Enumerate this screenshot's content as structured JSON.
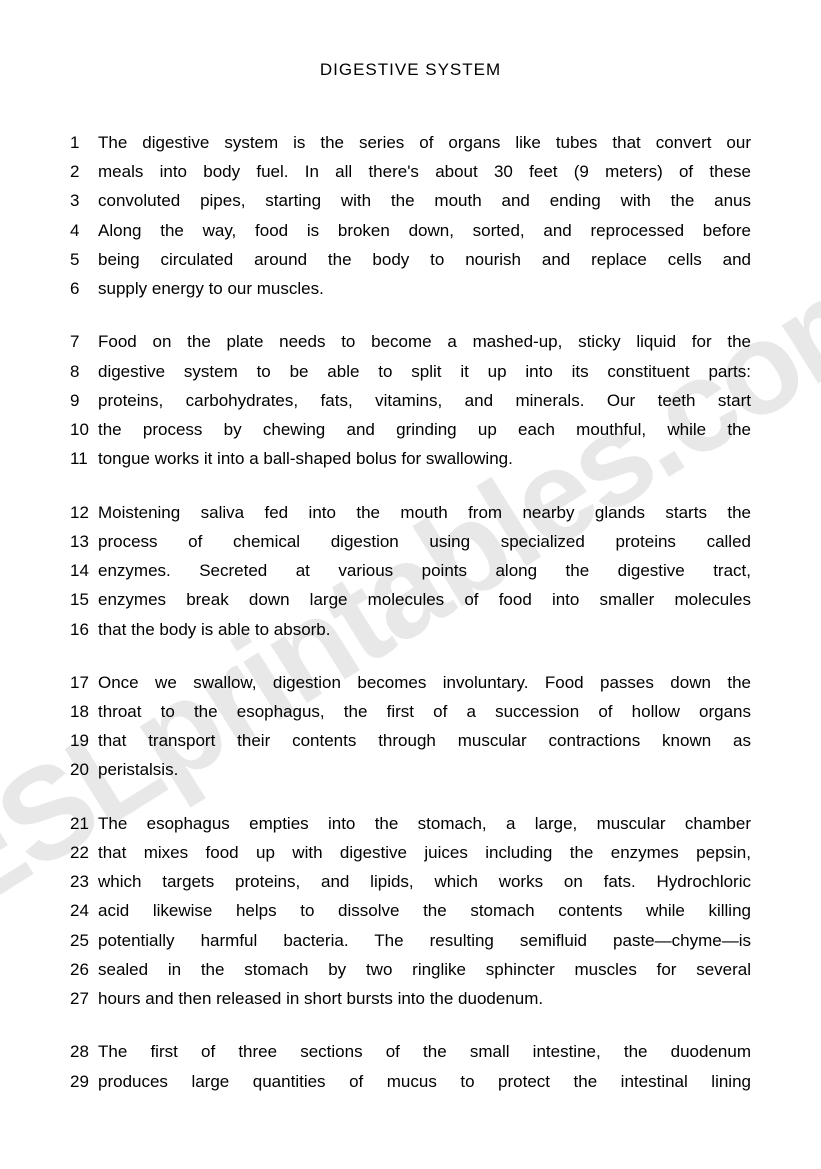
{
  "title": "DIGESTIVE SYSTEM",
  "watermark": "ESLprintables.com",
  "paragraphs": [
    {
      "lines": [
        {
          "num": "1",
          "text": "The digestive system is the series of organs like tubes that convert our",
          "last": false
        },
        {
          "num": "2",
          "text": "meals into body fuel. In all there's  about  30 feet  (9 meters) of these",
          "last": false
        },
        {
          "num": "3",
          "text": "convoluted  pipes,  starting  with the  mouth and  ending  with  the  anus",
          "last": false
        },
        {
          "num": "4",
          "text": "Along the  way, food is  broken down, sorted,  and  reprocessed  before",
          "last": false
        },
        {
          "num": "5",
          "text": "being  circulated  around  the  body  to  nourish  and  replace  cells  and",
          "last": false
        },
        {
          "num": "6",
          "text": "supply energy to our muscles.",
          "last": true
        }
      ]
    },
    {
      "lines": [
        {
          "num": "7",
          "text": "Food on the plate needs to  become a mashed-up,  sticky liquid  for  the",
          "last": false
        },
        {
          "num": "8",
          "text": "digestive  system to  be  able  to  split  it  up into its constituent parts:",
          "last": false
        },
        {
          "num": "9",
          "text": "proteins, carbohydrates, fats,  vitamins,  and  minerals. Our teeth start",
          "last": false
        },
        {
          "num": "10",
          "text": "the  process  by  chewing  and  grinding  up  each  mouthful,  while  the",
          "last": false
        },
        {
          "num": "11",
          "text": "tongue works it into a ball-shaped bolus for swallowing.",
          "last": true
        }
      ]
    },
    {
      "lines": [
        {
          "num": "12",
          "text": "Moistening  saliva  fed  into  the  mouth from nearby glands starts the",
          "last": false
        },
        {
          "num": "13",
          "text": "process  of   chemical   digestion   using   specialized   proteins   called",
          "last": false
        },
        {
          "num": "14",
          "text": "enzymes.   Secreted  at  various   points  along  the   digestive  tract,",
          "last": false
        },
        {
          "num": "15",
          "text": "enzymes  break  down  large  molecules  of  food into smaller molecules",
          "last": false
        },
        {
          "num": "16",
          "text": "that the body is able to absorb.",
          "last": true
        }
      ]
    },
    {
      "lines": [
        {
          "num": "17",
          "text": "Once we swallow, digestion becomes involuntary. Food passes down the",
          "last": false
        },
        {
          "num": "18",
          "text": "throat  to the  esophagus,  the first  of a  succession  of hollow organs",
          "last": false
        },
        {
          "num": "19",
          "text": "that transport their contents through muscular contractions known as",
          "last": false
        },
        {
          "num": "20",
          "text": "peristalsis.",
          "last": true
        }
      ]
    },
    {
      "lines": [
        {
          "num": "21",
          "text": "The  esophagus  empties  into the  stomach, a large, muscular chamber",
          "last": false
        },
        {
          "num": "22",
          "text": "that mixes food up with digestive juices including the enzymes pepsin,",
          "last": false
        },
        {
          "num": "23",
          "text": "which targets proteins, and lipids,  which works on fats.  Hydrochloric",
          "last": false
        },
        {
          "num": "24",
          "text": "acid  likewise  helps  to  dissolve  the  stomach  contents  while  killing",
          "last": false
        },
        {
          "num": "25",
          "text": "potentially harmful bacteria. The resulting semifluid paste—chyme—is",
          "last": false
        },
        {
          "num": "26",
          "text": "sealed in the stomach by two ringlike sphincter muscles for several",
          "last": false
        },
        {
          "num": "27",
          "text": "hours and then released in short bursts into the duodenum.",
          "last": true
        }
      ]
    },
    {
      "lines": [
        {
          "num": "28",
          "text": "The first  of  three  sections  of  the  small  intestine,  the  duodenum",
          "last": false
        },
        {
          "num": "29",
          "text": "produces  large  quantities  of  mucus  to  protect  the intestinal lining",
          "last": false
        }
      ]
    }
  ]
}
